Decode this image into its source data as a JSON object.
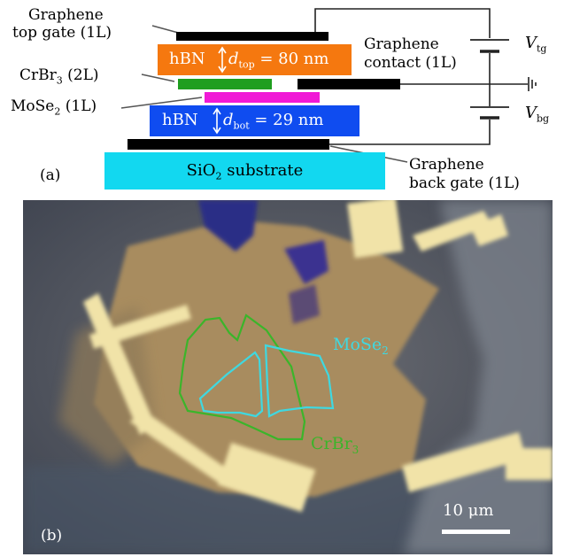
{
  "panel_a": {
    "panel_label": "(a)",
    "labels": {
      "graphene_top_gate_1": "Graphene",
      "graphene_top_gate_2": "top gate (1L)",
      "crbr3": "CrBr",
      "crbr3_sub": "3",
      "crbr3_suffix": " (2L)",
      "mose2": "MoSe",
      "mose2_sub": "2",
      "mose2_suffix": " (1L)",
      "graphene_contact_1": "Graphene",
      "graphene_contact_2": "contact (1L)",
      "graphene_back_gate_1": "Graphene",
      "graphene_back_gate_2": "back gate (1L)",
      "v_tg": "V",
      "v_tg_sub": "tg",
      "v_bg": "V",
      "v_bg_sub": "bg"
    },
    "hbn_top": {
      "name": "hBN",
      "d": "d",
      "d_sub": "top",
      "value": " = 80 nm"
    },
    "hbn_bot": {
      "name": "hBN",
      "d": "d",
      "d_sub": "bot",
      "value": " = 29 nm"
    },
    "substrate": {
      "name": "SiO",
      "sub": "2",
      "suffix": " substrate"
    },
    "colors": {
      "hbn_top": "#f5780f",
      "hbn_bot": "#0f4cf0",
      "crbr3": "#1f9e1f",
      "mose2": "#f019d6",
      "graphene": "#000000",
      "substrate": "#12d8f0"
    }
  },
  "panel_b": {
    "panel_label": "(b)",
    "mose2_label": "MoSe",
    "mose2_sub": "2",
    "crbr3_label": "CrBr",
    "crbr3_sub": "3",
    "scale_bar": "10 μm",
    "colors": {
      "mose2_outline": "#3fd8e0",
      "crbr3_outline": "#3bb52a"
    }
  }
}
